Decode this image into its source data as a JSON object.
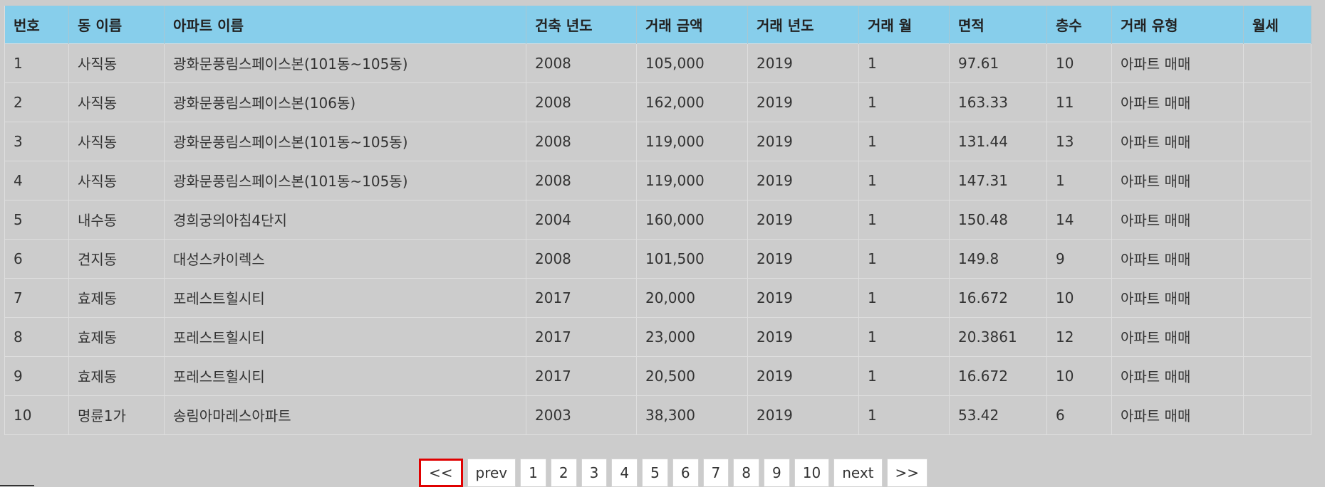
{
  "table": {
    "headers": [
      "번호",
      "동 이름",
      "아파트 이름",
      "건축 년도",
      "거래 금액",
      "거래 년도",
      "거래 월",
      "면적",
      "층수",
      "거래 유형",
      "월세"
    ],
    "rows": [
      [
        "1",
        "사직동",
        "광화문풍림스페이스본(101동~105동)",
        "2008",
        "105,000",
        "2019",
        "1",
        "97.61",
        "10",
        "아파트 매매",
        ""
      ],
      [
        "2",
        "사직동",
        "광화문풍림스페이스본(106동)",
        "2008",
        "162,000",
        "2019",
        "1",
        "163.33",
        "11",
        "아파트 매매",
        ""
      ],
      [
        "3",
        "사직동",
        "광화문풍림스페이스본(101동~105동)",
        "2008",
        "119,000",
        "2019",
        "1",
        "131.44",
        "13",
        "아파트 매매",
        ""
      ],
      [
        "4",
        "사직동",
        "광화문풍림스페이스본(101동~105동)",
        "2008",
        "119,000",
        "2019",
        "1",
        "147.31",
        "1",
        "아파트 매매",
        ""
      ],
      [
        "5",
        "내수동",
        "경희궁의아침4단지",
        "2004",
        "160,000",
        "2019",
        "1",
        "150.48",
        "14",
        "아파트 매매",
        ""
      ],
      [
        "6",
        "견지동",
        "대성스카이렉스",
        "2008",
        "101,500",
        "2019",
        "1",
        "149.8",
        "9",
        "아파트 매매",
        ""
      ],
      [
        "7",
        "효제동",
        "포레스트힐시티",
        "2017",
        "20,000",
        "2019",
        "1",
        "16.672",
        "10",
        "아파트 매매",
        ""
      ],
      [
        "8",
        "효제동",
        "포레스트힐시티",
        "2017",
        "23,000",
        "2019",
        "1",
        "20.3861",
        "12",
        "아파트 매매",
        ""
      ],
      [
        "9",
        "효제동",
        "포레스트힐시티",
        "2017",
        "20,500",
        "2019",
        "1",
        "16.672",
        "10",
        "아파트 매매",
        ""
      ],
      [
        "10",
        "명륜1가",
        "송림아마레스아파트",
        "2003",
        "38,300",
        "2019",
        "1",
        "53.42",
        "6",
        "아파트 매매",
        ""
      ]
    ]
  },
  "pagination": {
    "first_label": "<<",
    "prev_label": "prev",
    "pages": [
      "1",
      "2",
      "3",
      "4",
      "5",
      "6",
      "7",
      "8",
      "9",
      "10"
    ],
    "next_label": "next",
    "last_label": ">>"
  },
  "colors": {
    "header_bg": "#87ceeb",
    "page_bg": "#cccccc",
    "focus_outline": "#e00000"
  }
}
